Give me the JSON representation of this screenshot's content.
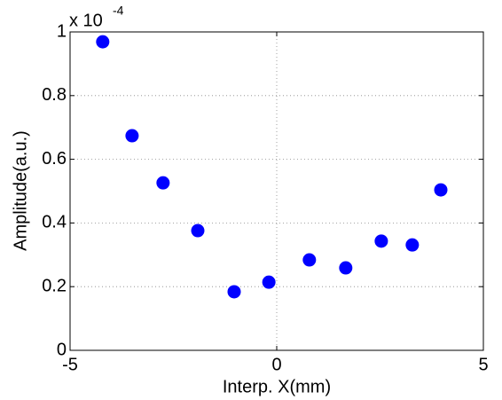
{
  "chart_data": {
    "type": "scatter",
    "x_label": "Interp. X(mm)",
    "y_label": "Amplitude(a.u.)",
    "y_multiplier": {
      "base": "x 10",
      "exponent": "-4"
    },
    "series": [
      {
        "color": "#0000ff",
        "x": [
          -4.21,
          -3.5,
          -2.75,
          -1.91,
          -1.03,
          -0.19,
          0.79,
          1.67,
          2.53,
          3.28,
          3.97
        ],
        "values": [
          0.969,
          0.674,
          0.526,
          0.376,
          0.184,
          0.214,
          0.284,
          0.259,
          0.343,
          0.331,
          0.504
        ]
      }
    ],
    "xlim": [
      -5,
      5
    ],
    "xticks": [
      -5,
      0,
      5
    ],
    "ylim": [
      0,
      1
    ],
    "yticks": [
      0,
      0.2,
      0.4,
      0.6,
      0.8,
      1
    ],
    "grid": true
  }
}
